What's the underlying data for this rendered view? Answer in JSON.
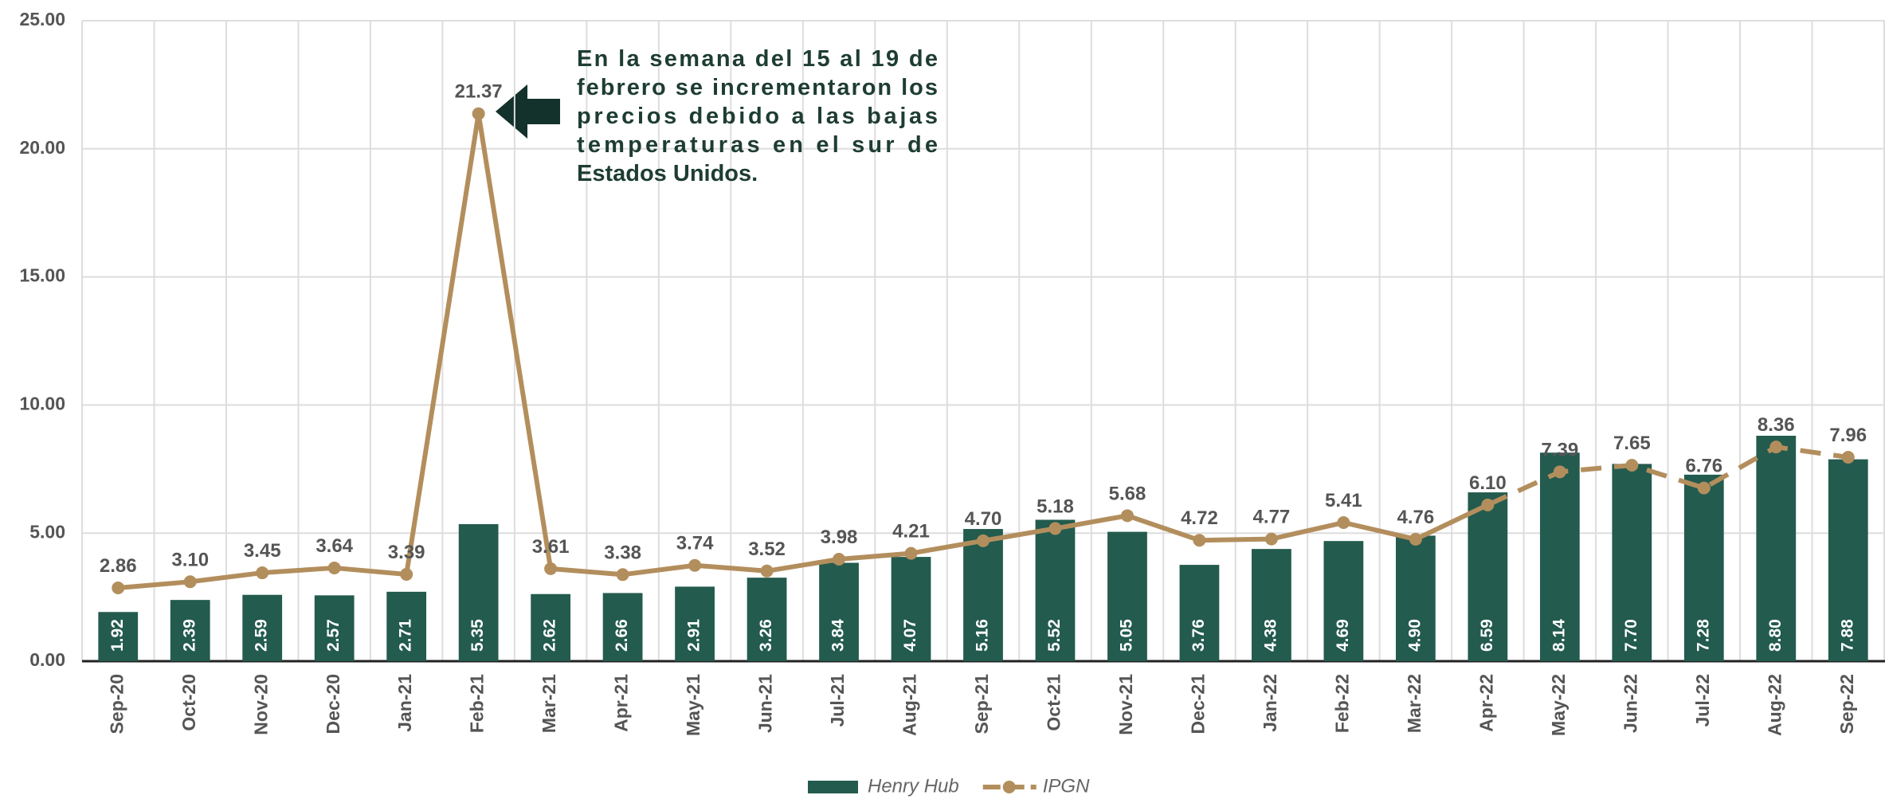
{
  "chart_data": {
    "type": "bar_line",
    "categories": [
      "Sep-20",
      "Oct-20",
      "Nov-20",
      "Dec-20",
      "Jan-21",
      "Feb-21",
      "Mar-21",
      "Apr-21",
      "May-21",
      "Jun-21",
      "Jul-21",
      "Aug-21",
      "Sep-21",
      "Oct-21",
      "Nov-21",
      "Dec-21",
      "Jan-22",
      "Feb-22",
      "Mar-22",
      "Apr-22",
      "May-22",
      "Jun-22",
      "Jul-22",
      "Aug-22",
      "Sep-22"
    ],
    "series": [
      {
        "name": "Henry Hub",
        "type": "bar",
        "color": "#235b4e",
        "values": [
          1.92,
          2.39,
          2.59,
          2.57,
          2.71,
          5.35,
          2.62,
          2.66,
          2.91,
          3.26,
          3.84,
          4.07,
          5.16,
          5.52,
          5.05,
          3.76,
          4.38,
          4.69,
          4.9,
          6.59,
          8.14,
          7.7,
          7.28,
          8.8,
          7.88
        ],
        "value_labels": [
          "1.92",
          "2.39",
          "2.59",
          "2.57",
          "2.71",
          "5.35",
          "2.62",
          "2.66",
          "2.91",
          "3.26",
          "3.84",
          "4.07",
          "5.16",
          "5.52",
          "5.05",
          "3.76",
          "4.38",
          "4.69",
          "4.90",
          "6.59",
          "8.14",
          "7.70",
          "7.28",
          "8.80",
          "7.88"
        ]
      },
      {
        "name": "IPGN",
        "type": "line",
        "color": "#b38e5d",
        "dashed_from_index": 19,
        "values": [
          2.86,
          3.1,
          3.45,
          3.64,
          3.39,
          21.37,
          3.61,
          3.38,
          3.74,
          3.52,
          3.98,
          4.21,
          4.7,
          5.18,
          5.68,
          4.72,
          4.77,
          5.41,
          4.76,
          6.1,
          7.39,
          7.65,
          6.76,
          8.36,
          7.96
        ],
        "value_labels": [
          "2.86",
          "3.10",
          "3.45",
          "3.64",
          "3.39",
          "21.37",
          "3.61",
          "3.38",
          "3.74",
          "3.52",
          "3.98",
          "4.21",
          "4.70",
          "5.18",
          "5.68",
          "4.72",
          "4.77",
          "5.41",
          "4.76",
          "6.10",
          "7.39",
          "7.65",
          "6.76",
          "8.36",
          "7.96"
        ]
      }
    ],
    "ylim": [
      0,
      25
    ],
    "yticks": [
      {
        "value": 0,
        "label": "0.00"
      },
      {
        "value": 5,
        "label": "5.00"
      },
      {
        "value": 10,
        "label": "10.00"
      },
      {
        "value": 15,
        "label": "15.00"
      },
      {
        "value": 20,
        "label": "20.00"
      },
      {
        "value": 25,
        "label": "25.00"
      }
    ],
    "grid": true,
    "legend": "bottom",
    "annotation": [
      "En la semana del 15 al 19 de",
      "febrero se incrementaron los",
      "precios debido a las bajas",
      "temperaturas en el sur de",
      "Estados Unidos."
    ]
  }
}
